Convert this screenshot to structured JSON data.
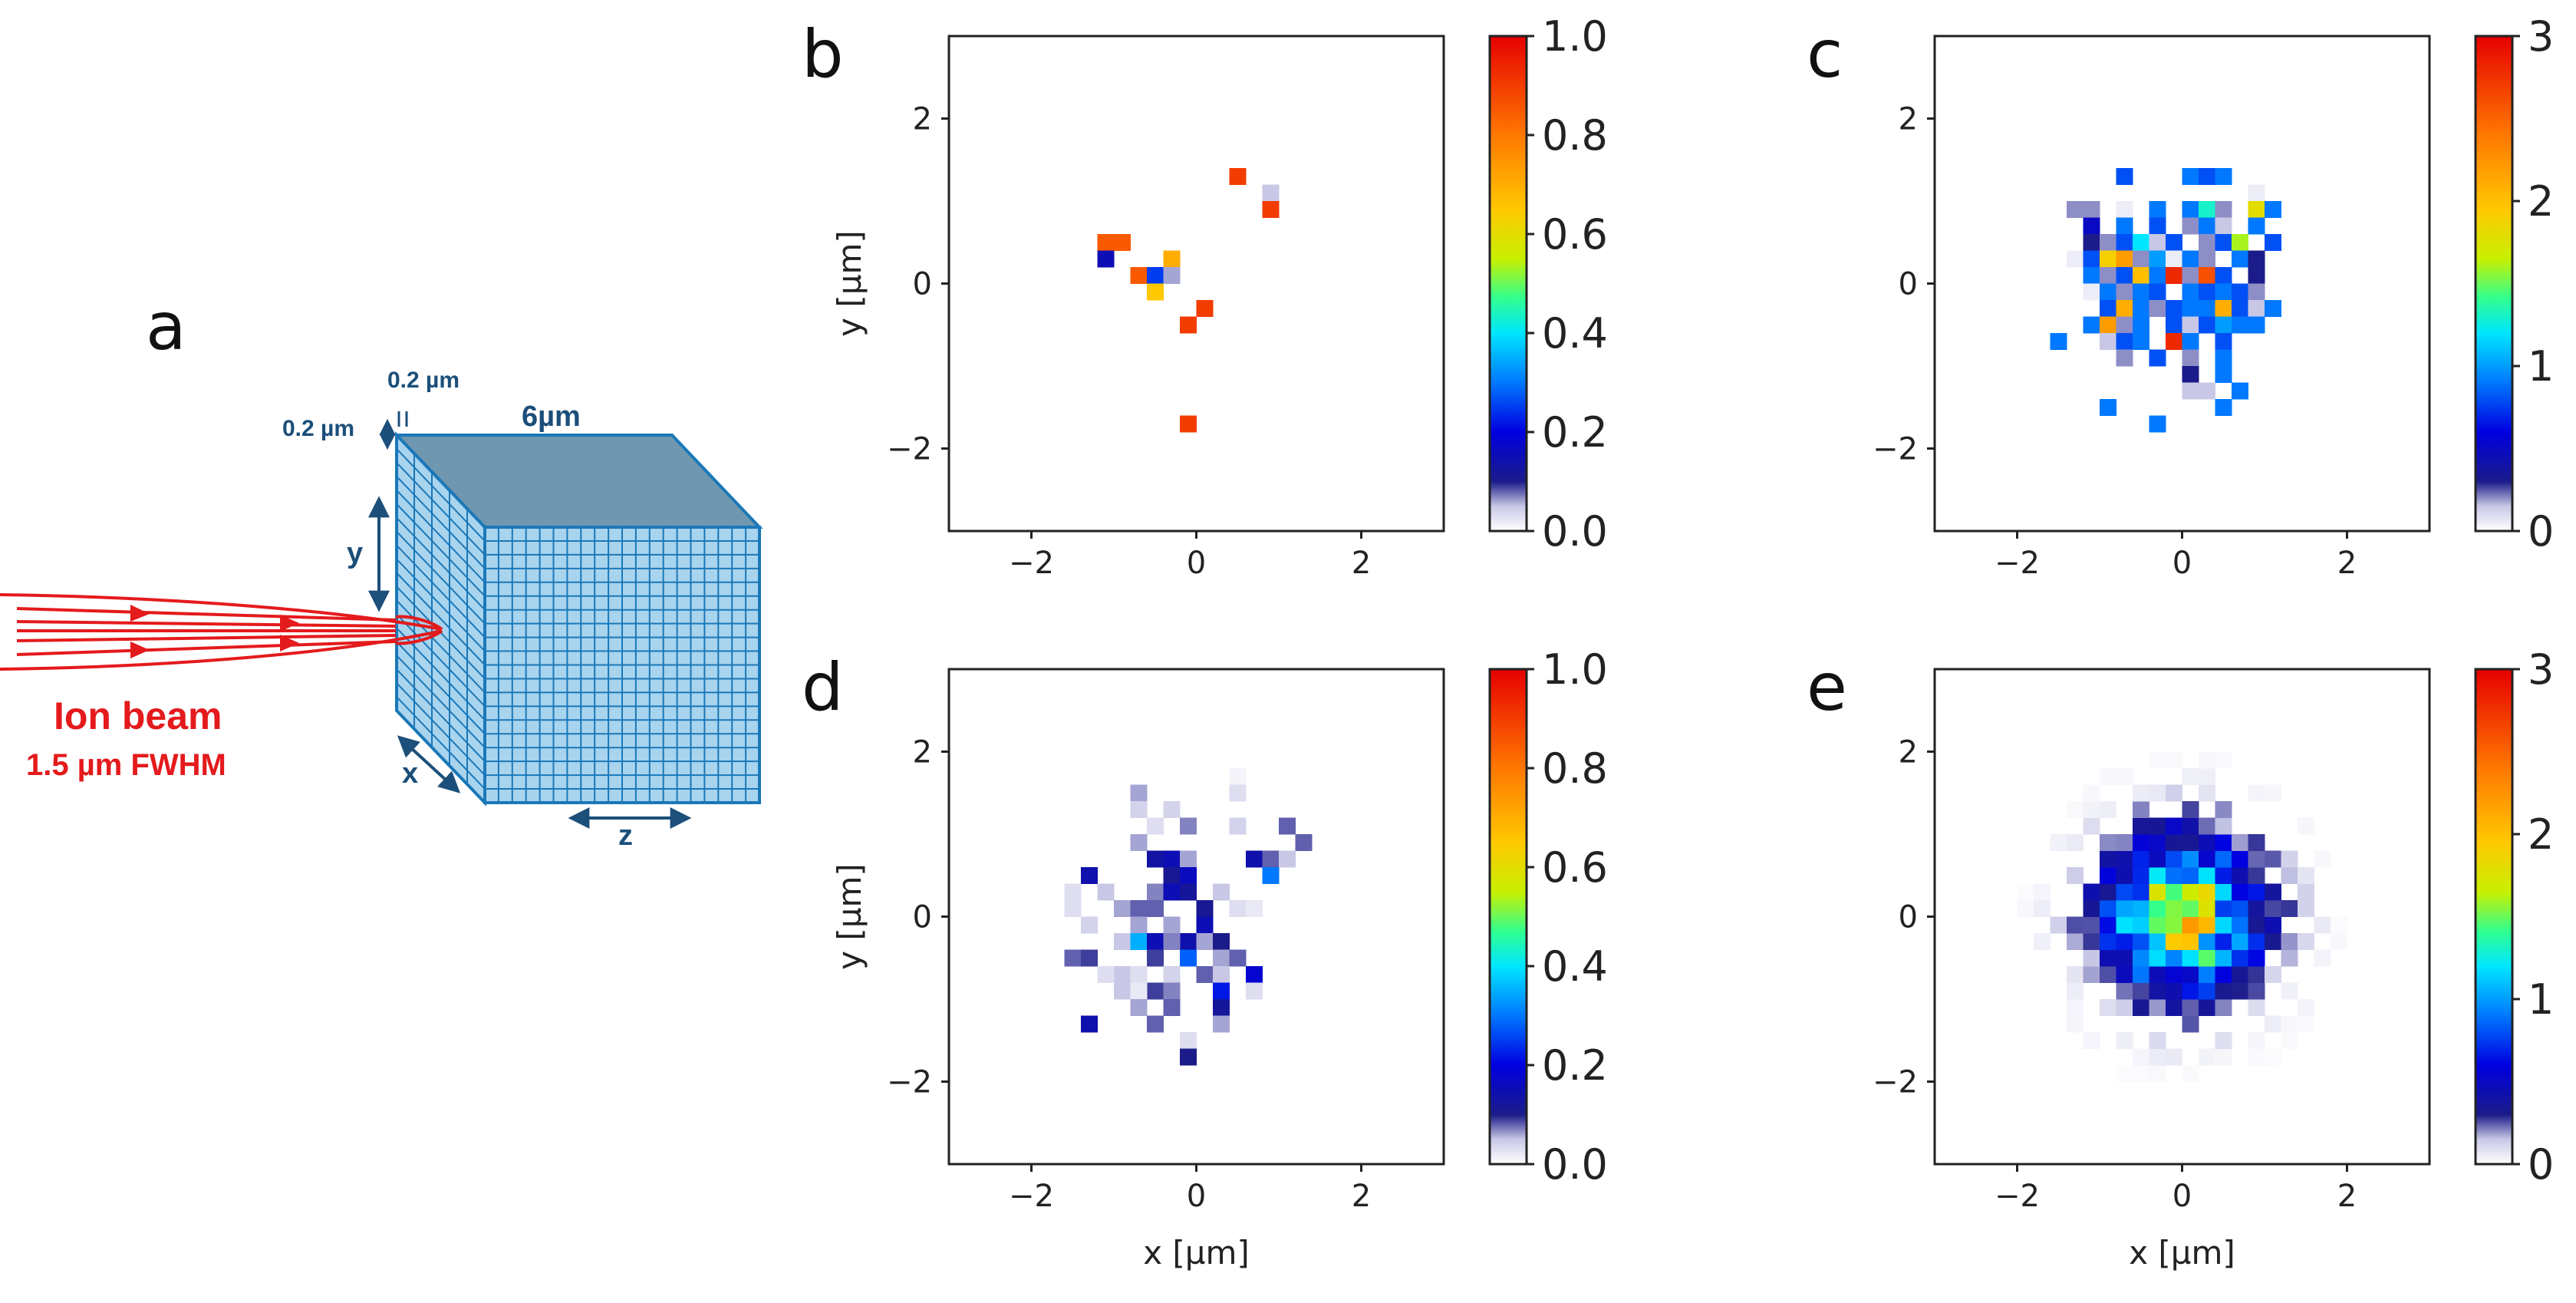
{
  "colors": {
    "axis": "#222222",
    "beam": "#e41a1c",
    "block_side": "#a9d4ee",
    "block_top": "#6f97b0",
    "block_grid": "#1a78b8",
    "dimension_text": "#1c4f7a"
  },
  "schematic": {
    "panel_label": "a",
    "cell_width_label": "0.2 µm",
    "cell_height_label": "0.2 µm",
    "block_length_label": "6µm",
    "axis_x_label": "x",
    "axis_y_label": "y",
    "axis_z_label": "z",
    "beam_label": "Ion beam",
    "beam_fwhm_label": "1.5 µm FWHM"
  },
  "chart_data": [
    {
      "panel": "b",
      "type": "heatmap",
      "xlabel": "",
      "ylabel": "y [µm]",
      "xlim": [
        -3,
        3
      ],
      "ylim": [
        -3,
        3
      ],
      "xticks": [
        "−2",
        "0",
        "2"
      ],
      "yticks": [
        "−2",
        "0",
        "2"
      ],
      "colorbar": {
        "min": 0,
        "max": 1.0,
        "ticks": [
          "0.0",
          "0.2",
          "0.4",
          "0.6",
          "0.8",
          "1.0"
        ]
      },
      "bins": 0.2,
      "cells": [
        [
          0.5,
          1.3,
          0.9
        ],
        [
          0.9,
          1.1,
          0.05
        ],
        [
          0.9,
          0.9,
          0.9
        ],
        [
          -1.1,
          0.5,
          0.85
        ],
        [
          -0.9,
          0.5,
          0.85
        ],
        [
          -1.1,
          0.3,
          0.15
        ],
        [
          -0.3,
          0.3,
          0.7
        ],
        [
          -0.7,
          0.1,
          0.85
        ],
        [
          -0.5,
          0.1,
          0.25
        ],
        [
          -0.3,
          0.1,
          0.06
        ],
        [
          -0.5,
          -0.1,
          0.65
        ],
        [
          0.1,
          -0.3,
          0.9
        ],
        [
          -0.1,
          -0.5,
          0.9
        ],
        [
          -0.1,
          -1.7,
          0.9
        ]
      ]
    },
    {
      "panel": "c",
      "type": "heatmap",
      "xlabel": "",
      "ylabel": "",
      "xlim": [
        -3,
        3
      ],
      "ylim": [
        -3,
        3
      ],
      "xticks": [
        "−2",
        "0",
        "2"
      ],
      "yticks": [
        "−2",
        "0",
        "2"
      ],
      "colorbar": {
        "min": 0,
        "max": 3,
        "ticks": [
          "0",
          "1",
          "2",
          "3"
        ]
      },
      "bins": 0.2,
      "cells": [
        [
          0.1,
          1.3,
          0.9
        ],
        [
          0.3,
          1.3,
          0.8
        ],
        [
          0.5,
          1.3,
          0.9
        ],
        [
          -0.7,
          1.3,
          0.8
        ],
        [
          0.9,
          1.1,
          0.05
        ],
        [
          -1.3,
          0.9,
          0.2
        ],
        [
          -1.1,
          0.9,
          0.2
        ],
        [
          -0.7,
          0.9,
          0.05
        ],
        [
          -0.3,
          0.9,
          0.9
        ],
        [
          0.1,
          0.9,
          0.9
        ],
        [
          0.3,
          0.9,
          1.3
        ],
        [
          0.5,
          0.9,
          0.2
        ],
        [
          0.9,
          0.9,
          1.8
        ],
        [
          1.1,
          0.9,
          0.9
        ],
        [
          -1.1,
          0.7,
          0.5
        ],
        [
          -0.7,
          0.7,
          0.9
        ],
        [
          -0.3,
          0.7,
          0.8
        ],
        [
          0.1,
          0.7,
          0.2
        ],
        [
          0.3,
          0.7,
          0.9
        ],
        [
          0.5,
          0.7,
          0.15
        ],
        [
          0.9,
          0.7,
          0.9
        ],
        [
          -1.1,
          0.5,
          0.3
        ],
        [
          -0.9,
          0.5,
          0.2
        ],
        [
          -0.7,
          0.5,
          0.8
        ],
        [
          -0.5,
          0.5,
          1.2
        ],
        [
          -0.3,
          0.5,
          0.15
        ],
        [
          -0.1,
          0.5,
          0.8
        ],
        [
          0.3,
          0.5,
          0.2
        ],
        [
          0.5,
          0.5,
          0.8
        ],
        [
          0.7,
          0.5,
          1.6
        ],
        [
          1.1,
          0.5,
          0.8
        ],
        [
          -1.3,
          0.3,
          0.05
        ],
        [
          -1.1,
          0.3,
          0.8
        ],
        [
          -0.9,
          0.3,
          1.9
        ],
        [
          -0.7,
          0.3,
          2.2
        ],
        [
          -0.5,
          0.3,
          0.2
        ],
        [
          -0.3,
          0.3,
          1.0
        ],
        [
          -0.1,
          0.3,
          0.05
        ],
        [
          0.1,
          0.3,
          0.9
        ],
        [
          0.3,
          0.3,
          0.2
        ],
        [
          0.7,
          0.3,
          0.9
        ],
        [
          0.9,
          0.3,
          0.3
        ],
        [
          -1.1,
          0.1,
          0.9
        ],
        [
          -0.9,
          0.1,
          0.2
        ],
        [
          -0.7,
          0.1,
          0.8
        ],
        [
          -0.5,
          0.1,
          2.0
        ],
        [
          -0.3,
          0.1,
          0.9
        ],
        [
          -0.1,
          0.1,
          2.8
        ],
        [
          0.1,
          0.1,
          0.2
        ],
        [
          0.3,
          0.1,
          2.6
        ],
        [
          0.5,
          0.1,
          0.8
        ],
        [
          0.9,
          0.1,
          0.3
        ],
        [
          -1.1,
          -0.1,
          0.05
        ],
        [
          -0.9,
          -0.1,
          0.9
        ],
        [
          -0.7,
          -0.1,
          0.2
        ],
        [
          -0.5,
          -0.1,
          0.9
        ],
        [
          -0.3,
          -0.1,
          0.8
        ],
        [
          0.1,
          -0.1,
          0.9
        ],
        [
          0.3,
          -0.1,
          0.8
        ],
        [
          0.5,
          -0.1,
          0.9
        ],
        [
          0.7,
          -0.1,
          0.8
        ],
        [
          0.9,
          -0.1,
          0.2
        ],
        [
          -0.9,
          -0.3,
          0.8
        ],
        [
          -0.7,
          -0.3,
          2.1
        ],
        [
          -0.5,
          -0.3,
          0.9
        ],
        [
          -0.3,
          -0.3,
          0.2
        ],
        [
          -0.1,
          -0.3,
          0.8
        ],
        [
          0.1,
          -0.3,
          0.9
        ],
        [
          0.3,
          -0.3,
          0.9
        ],
        [
          0.5,
          -0.3,
          2.1
        ],
        [
          0.7,
          -0.3,
          0.8
        ],
        [
          0.9,
          -0.3,
          0.15
        ],
        [
          1.1,
          -0.3,
          0.9
        ],
        [
          -1.1,
          -0.5,
          0.9
        ],
        [
          -0.9,
          -0.5,
          2.2
        ],
        [
          -0.7,
          -0.5,
          0.2
        ],
        [
          -0.5,
          -0.5,
          0.9
        ],
        [
          -0.1,
          -0.5,
          0.8
        ],
        [
          0.1,
          -0.5,
          0.15
        ],
        [
          0.3,
          -0.5,
          0.8
        ],
        [
          0.5,
          -0.5,
          1.0
        ],
        [
          0.7,
          -0.5,
          0.9
        ],
        [
          0.9,
          -0.5,
          0.9
        ],
        [
          -1.5,
          -0.7,
          0.9
        ],
        [
          -0.9,
          -0.7,
          0.15
        ],
        [
          -0.7,
          -0.7,
          0.8
        ],
        [
          -0.5,
          -0.7,
          0.9
        ],
        [
          -0.1,
          -0.7,
          2.8
        ],
        [
          0.1,
          -0.7,
          0.9
        ],
        [
          0.5,
          -0.7,
          0.8
        ],
        [
          -0.7,
          -0.9,
          0.2
        ],
        [
          -0.3,
          -0.9,
          0.8
        ],
        [
          0.1,
          -0.9,
          0.2
        ],
        [
          0.5,
          -0.9,
          0.9
        ],
        [
          0.1,
          -1.1,
          0.3
        ],
        [
          0.5,
          -1.1,
          0.9
        ],
        [
          0.1,
          -1.3,
          0.15
        ],
        [
          0.3,
          -1.3,
          0.15
        ],
        [
          0.7,
          -1.3,
          0.9
        ],
        [
          -0.9,
          -1.5,
          0.9
        ],
        [
          0.5,
          -1.5,
          0.9
        ],
        [
          -0.3,
          -1.7,
          0.9
        ]
      ]
    },
    {
      "panel": "d",
      "type": "heatmap",
      "xlabel": "x [µm]",
      "ylabel": "y [µm]",
      "xlim": [
        -3,
        3
      ],
      "ylim": [
        -3,
        3
      ],
      "xticks": [
        "−2",
        "0",
        "2"
      ],
      "yticks": [
        "−2",
        "0",
        "2"
      ],
      "colorbar": {
        "min": 0,
        "max": 1.0,
        "ticks": [
          "0.0",
          "0.2",
          "0.4",
          "0.6",
          "0.8",
          "1.0"
        ]
      },
      "bins": 0.2,
      "cells": [
        [
          0.5,
          1.7,
          0.01
        ],
        [
          -0.7,
          1.5,
          0.06
        ],
        [
          0.5,
          1.5,
          0.03
        ],
        [
          -0.7,
          1.3,
          0.04
        ],
        [
          -0.3,
          1.3,
          0.04
        ],
        [
          -0.5,
          1.1,
          0.03
        ],
        [
          -0.1,
          1.1,
          0.07
        ],
        [
          0.5,
          1.1,
          0.04
        ],
        [
          1.1,
          1.1,
          0.08
        ],
        [
          1.3,
          0.9,
          0.08
        ],
        [
          -0.7,
          0.9,
          0.06
        ],
        [
          -0.5,
          0.7,
          0.13
        ],
        [
          -0.3,
          0.7,
          0.15
        ],
        [
          -0.1,
          0.7,
          0.06
        ],
        [
          0.7,
          0.7,
          0.14
        ],
        [
          0.9,
          0.7,
          0.08
        ],
        [
          1.1,
          0.7,
          0.05
        ],
        [
          -1.3,
          0.5,
          0.14
        ],
        [
          -0.3,
          0.5,
          0.11
        ],
        [
          -0.1,
          0.5,
          0.16
        ],
        [
          0.9,
          0.5,
          0.3
        ],
        [
          -1.5,
          0.3,
          0.03
        ],
        [
          -1.1,
          0.3,
          0.05
        ],
        [
          -0.5,
          0.3,
          0.07
        ],
        [
          -0.3,
          0.3,
          0.15
        ],
        [
          -0.1,
          0.3,
          0.12
        ],
        [
          0.3,
          0.3,
          0.05
        ],
        [
          -1.5,
          0.1,
          0.03
        ],
        [
          -0.9,
          0.1,
          0.06
        ],
        [
          -0.7,
          0.1,
          0.08
        ],
        [
          -0.5,
          0.1,
          0.08
        ],
        [
          0.1,
          0.1,
          0.11
        ],
        [
          0.5,
          0.1,
          0.03
        ],
        [
          0.7,
          0.1,
          0.02
        ],
        [
          -1.3,
          -0.1,
          0.04
        ],
        [
          -0.7,
          -0.1,
          0.06
        ],
        [
          -0.3,
          -0.1,
          0.06
        ],
        [
          0.1,
          -0.1,
          0.15
        ],
        [
          -0.9,
          -0.3,
          0.05
        ],
        [
          -0.7,
          -0.3,
          0.35
        ],
        [
          -0.5,
          -0.3,
          0.15
        ],
        [
          -0.1,
          -0.3,
          0.14
        ],
        [
          0.1,
          -0.3,
          0.06
        ],
        [
          0.3,
          -0.3,
          0.1
        ],
        [
          -0.3,
          -0.3,
          0.07
        ],
        [
          -1.5,
          -0.5,
          0.08
        ],
        [
          -1.3,
          -0.5,
          0.09
        ],
        [
          -0.5,
          -0.5,
          0.09
        ],
        [
          -0.1,
          -0.5,
          0.28
        ],
        [
          0.3,
          -0.5,
          0.06
        ],
        [
          0.5,
          -0.5,
          0.08
        ],
        [
          -0.9,
          -0.7,
          0.05
        ],
        [
          -0.7,
          -0.7,
          0.03
        ],
        [
          -0.3,
          -0.7,
          0.04
        ],
        [
          0.1,
          -0.7,
          0.08
        ],
        [
          0.3,
          -0.7,
          0.05
        ],
        [
          0.7,
          -0.7,
          0.18
        ],
        [
          -1.1,
          -0.7,
          0.03
        ],
        [
          -0.9,
          -0.9,
          0.05
        ],
        [
          -0.5,
          -0.9,
          0.09
        ],
        [
          -0.3,
          -0.9,
          0.07
        ],
        [
          0.3,
          -0.9,
          0.22
        ],
        [
          0.7,
          -0.9,
          0.03
        ],
        [
          -0.7,
          -0.9,
          0.02
        ],
        [
          -0.7,
          -1.1,
          0.06
        ],
        [
          -0.3,
          -1.1,
          0.08
        ],
        [
          0.3,
          -1.1,
          0.12
        ],
        [
          -1.3,
          -1.3,
          0.14
        ],
        [
          -0.5,
          -1.3,
          0.08
        ],
        [
          0.3,
          -1.3,
          0.06
        ],
        [
          -0.1,
          -1.5,
          0.03
        ],
        [
          -0.1,
          -1.7,
          0.1
        ]
      ]
    },
    {
      "panel": "e",
      "type": "heatmap",
      "xlabel": "x [µm]",
      "ylabel": "",
      "xlim": [
        -3,
        3
      ],
      "ylim": [
        -3,
        3
      ],
      "xticks": [
        "−2",
        "0",
        "2"
      ],
      "yticks": [
        "−2",
        "0",
        "2"
      ],
      "colorbar": {
        "min": 0,
        "max": 3,
        "ticks": [
          "0",
          "1",
          "2",
          "3"
        ]
      },
      "distribution": {
        "type": "gaussian",
        "center": [
          0,
          0
        ],
        "fwhm": 1.5,
        "peak": 1.6,
        "radius": 2.2,
        "bins": 0.2
      }
    }
  ]
}
